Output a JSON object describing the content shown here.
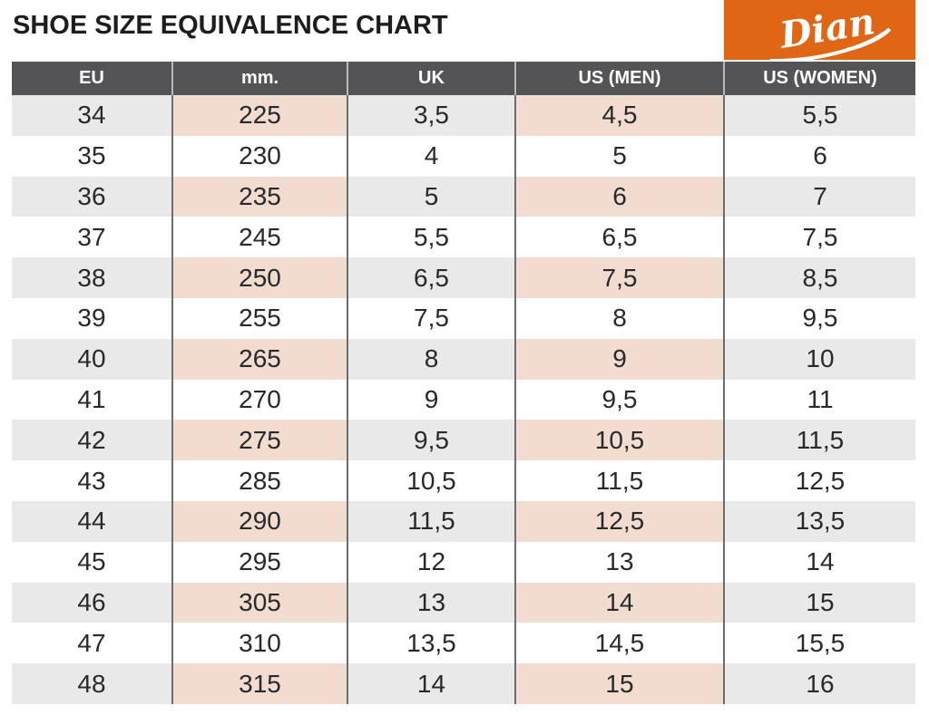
{
  "title": "SHOE SIZE EQUIVALENCE CHART",
  "logo": {
    "text": "Dian"
  },
  "colors": {
    "accent_orange": "#e06616",
    "header_bg": "#545457",
    "stripe_gray": "#e9e9ea",
    "stripe_peach": "#f2dcd0",
    "header_text": "#ffffff",
    "body_text": "#29292b"
  },
  "chart_data": {
    "type": "table",
    "title": "SHOE SIZE EQUIVALENCE CHART",
    "columns": [
      "EU",
      "mm.",
      "UK",
      "US (MEN)",
      "US (WOMEN)"
    ],
    "rows": [
      [
        "34",
        "225",
        "3,5",
        "4,5",
        "5,5"
      ],
      [
        "35",
        "230",
        "4",
        "5",
        "6"
      ],
      [
        "36",
        "235",
        "5",
        "6",
        "7"
      ],
      [
        "37",
        "245",
        "5,5",
        "6,5",
        "7,5"
      ],
      [
        "38",
        "250",
        "6,5",
        "7,5",
        "8,5"
      ],
      [
        "39",
        "255",
        "7,5",
        "8",
        "9,5"
      ],
      [
        "40",
        "265",
        "8",
        "9",
        "10"
      ],
      [
        "41",
        "270",
        "9",
        "9,5",
        "11"
      ],
      [
        "42",
        "275",
        "9,5",
        "10,5",
        "11,5"
      ],
      [
        "43",
        "285",
        "10,5",
        "11,5",
        "12,5"
      ],
      [
        "44",
        "290",
        "11,5",
        "12,5",
        "13,5"
      ],
      [
        "45",
        "295",
        "12",
        "13",
        "14"
      ],
      [
        "46",
        "305",
        "13",
        "14",
        "15"
      ],
      [
        "47",
        "310",
        "13,5",
        "14,5",
        "15,5"
      ],
      [
        "48",
        "315",
        "14",
        "15",
        "16"
      ]
    ],
    "striped_row_indices": [
      0,
      2,
      4,
      6,
      8,
      10,
      12,
      14
    ],
    "tinted_columns": [
      "mm.",
      "US (MEN)"
    ],
    "layout": {
      "grid": "row-striped table",
      "legend": "none"
    }
  }
}
